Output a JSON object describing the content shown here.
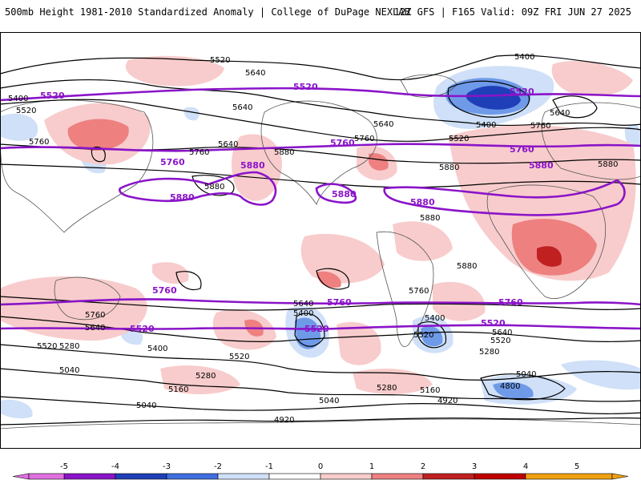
{
  "header": {
    "title": "500mb Height 1981-2010 Standardized Anomaly | College of DuPage NEXLAB",
    "run_info": "12Z GFS | F165 Valid: 09Z FRI JUN 27 2025"
  },
  "colors": {
    "highlight_contour": "#8a14c8",
    "contour": "#000000",
    "land_outline": "#555555",
    "neg_light": "#cfe0f8",
    "neg_mid": "#6f9ae8",
    "neg_dark": "#1f3fb8",
    "pos_light": "#f8cccc",
    "pos_mid": "#ee8080",
    "pos_dark": "#c02020"
  },
  "contour_labels": {
    "black": [
      "5520",
      "5640",
      "5400",
      "5400",
      "5520",
      "5640",
      "5760",
      "5640",
      "5880",
      "5400",
      "5640",
      "5760",
      "5520",
      "5760",
      "5640",
      "5760",
      "5880",
      "5880",
      "5880",
      "5880",
      "5880",
      "5760",
      "5640",
      "5400",
      "5520",
      "5280",
      "5040",
      "5280",
      "5160",
      "5520",
      "5280",
      "5040",
      "5400",
      "5640",
      "5760",
      "5400",
      "5520",
      "5280",
      "5040",
      "4920",
      "4800",
      "5640",
      "5520",
      "5160",
      "4920",
      "5040"
    ],
    "purple": [
      "5520",
      "5520",
      "5520",
      "5760",
      "5760",
      "5760",
      "5880",
      "5880",
      "5880",
      "5880",
      "5880",
      "5760",
      "5760",
      "5760",
      "5520",
      "5520",
      "5520"
    ]
  },
  "colorbar": {
    "ticks": [
      "-5",
      "-4",
      "-3",
      "-2",
      "-1",
      "0",
      "1",
      "2",
      "3",
      "4",
      "5"
    ],
    "colors": [
      "#e070e0",
      "#8a14c8",
      "#1f3fb8",
      "#3f6ee0",
      "#cfe0f8",
      "#ffffff",
      "#f8cccc",
      "#ee8080",
      "#c02020",
      "#c00000",
      "#f0a010"
    ]
  }
}
